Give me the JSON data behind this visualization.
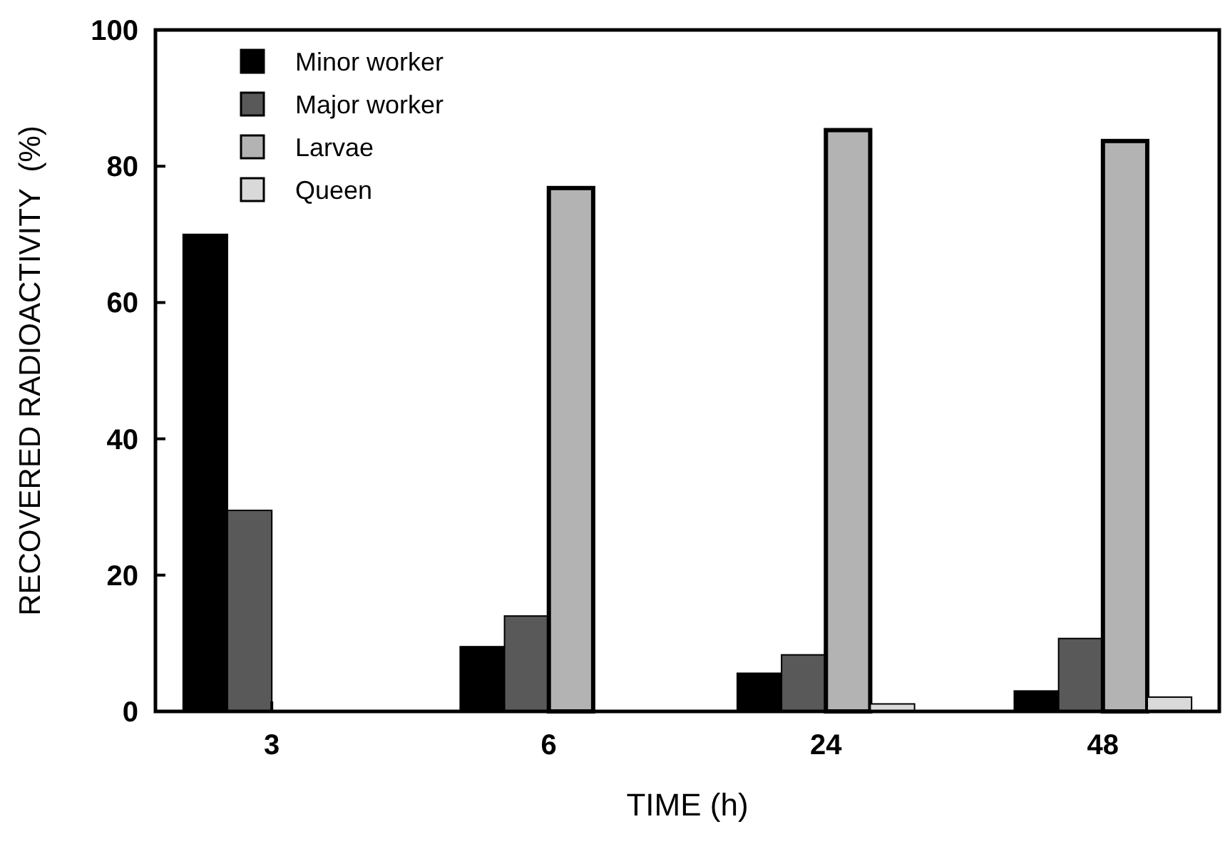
{
  "chart_data": {
    "type": "bar",
    "xlabel": "TIME (h)",
    "ylabel": "RECOVERED RADIOACTIVITY  (%)",
    "categories": [
      "3",
      "6",
      "24",
      "48"
    ],
    "series": [
      {
        "name": "Minor worker",
        "color": "#000000",
        "values": [
          70,
          9.5,
          5.6,
          3
        ]
      },
      {
        "name": "Major worker",
        "color": "#595959",
        "values": [
          29.5,
          14,
          8.3,
          10.7
        ]
      },
      {
        "name": "Larvae",
        "color": "#b3b3b3",
        "values": [
          null,
          76.8,
          85.3,
          83.7
        ]
      },
      {
        "name": "Queen",
        "color": "#d9d9d9",
        "values": [
          null,
          null,
          1.1,
          2.1
        ]
      }
    ],
    "ylim": [
      0,
      100
    ],
    "yticks": [
      0,
      20,
      40,
      60,
      80,
      100
    ],
    "legend": "top left",
    "grid": false
  }
}
